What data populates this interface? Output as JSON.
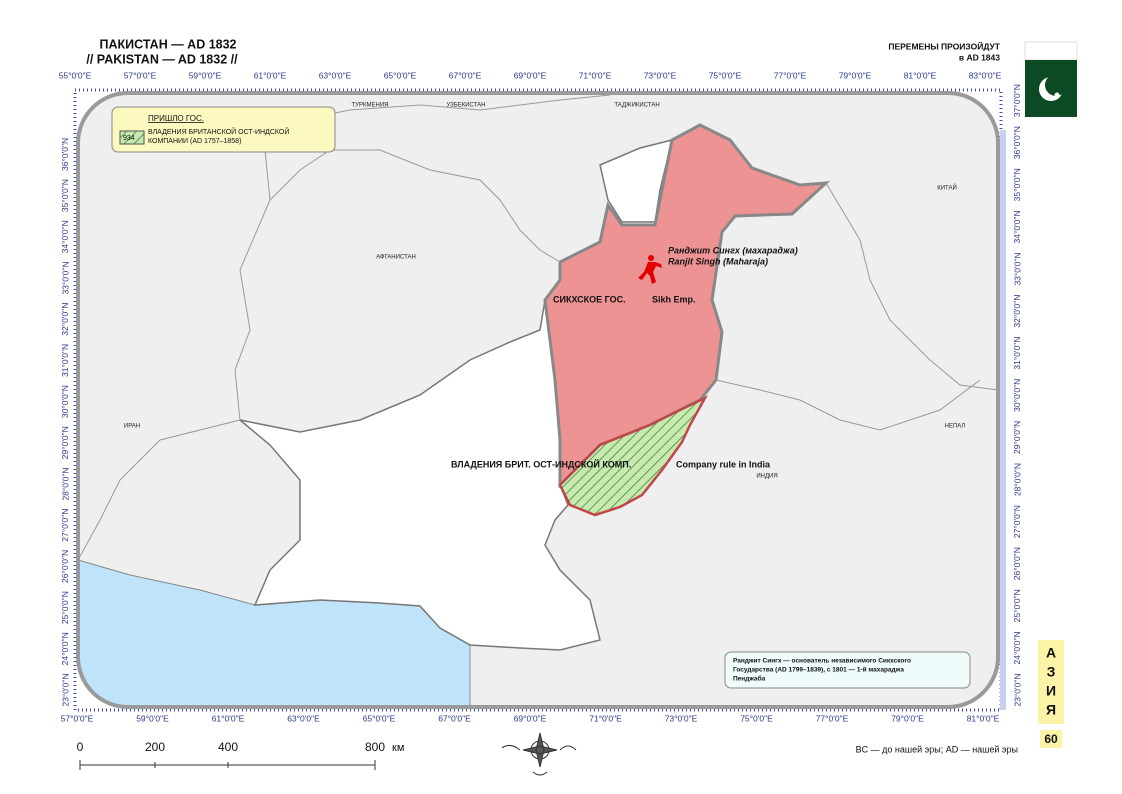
{
  "header": {
    "title_ru": "ПАКИСТАН — AD 1832",
    "title_en": "// PAKISTAN — AD 1832 //",
    "change_line1": "ПЕРЕМЕНЫ ПРОИЗОЙДУТ",
    "change_line2": "в AD 1843"
  },
  "longitudes_top": [
    "55°0'0\"E",
    "57°0'0\"E",
    "59°0'0\"E",
    "61°0'0\"E",
    "63°0'0\"E",
    "65°0'0\"E",
    "67°0'0\"E",
    "69°0'0\"E",
    "71°0'0\"E",
    "73°0'0\"E",
    "75°0'0\"E",
    "77°0'0\"E",
    "79°0'0\"E",
    "81°0'0\"E",
    "83°0'0\"E"
  ],
  "longitudes_bottom": [
    "57°0'0\"E",
    "59°0'0\"E",
    "61°0'0\"E",
    "63°0'0\"E",
    "65°0'0\"E",
    "67°0'0\"E",
    "69°0'0\"E",
    "71°0'0\"E",
    "73°0'0\"E",
    "75°0'0\"E",
    "77°0'0\"E",
    "79°0'0\"E",
    "81°0'0\"E"
  ],
  "latitudes_left": [
    "23°0'0\"N",
    "24°0'0\"N",
    "25°0'0\"N",
    "26°0'0\"N",
    "27°0'0\"N",
    "28°0'0\"N",
    "29°0'0\"N",
    "30°0'0\"N",
    "31°0'0\"N",
    "32°0'0\"N",
    "33°0'0\"N",
    "34°0'0\"N",
    "35°0'0\"N",
    "36°0'0\"N"
  ],
  "latitudes_right": [
    "23°0'0\"N",
    "24°0'0\"N",
    "25°0'0\"N",
    "26°0'0\"N",
    "27°0'0\"N",
    "28°0'0\"N",
    "29°0'0\"N",
    "30°0'0\"N",
    "31°0'0\"N",
    "32°0'0\"N",
    "33°0'0\"N",
    "34°0'0\"N",
    "35°0'0\"N",
    "36°0'0\"N",
    "37°0'0\"N"
  ],
  "legend": {
    "title": "ПРИШЛО ГОС.",
    "swatch": "934",
    "line1": "ВЛАДЕНИЯ БРИТАНСКОЙ ОСТ-ИНДСКОЙ",
    "line2": "КОМПАНИИ (AD 1757–1858)"
  },
  "countries": {
    "turkmenia": "ТУРКМЕНИЯ",
    "uzbekistan": "УЗБЕКИСТАН",
    "tajikistan": "ТАДЖИКИСТАН",
    "china": "КИТАЙ",
    "afghanistan": "АФГАНИСТАН",
    "iran": "ИРАН",
    "nepal": "НЕПАЛ",
    "india": "ИНДИЯ"
  },
  "ranjit": {
    "ru": "Ранджит Сингх (махараджа)",
    "en": "Ranjit Singh (Maharaja)"
  },
  "sikh": {
    "ru": "СИКХСКОЕ ГОС.",
    "en": "Sikh Emp."
  },
  "company": {
    "ru": "ВЛАДЕНИЯ БРИТ. ОСТ-ИНДСКОЙ КОМП.",
    "en": "Company rule in India"
  },
  "note": {
    "line1": "Ранджит Сингх — основатель независимого Сикхского",
    "line2": "Государства (AD 1799–1839), с 1801 — 1-й махараджа",
    "line3": "Пенджаба"
  },
  "scale": {
    "labels": [
      "0",
      "200",
      "400",
      "800"
    ],
    "unit": "км"
  },
  "side_tab": {
    "letters": [
      "А",
      "З",
      "И",
      "Я"
    ],
    "page": "60"
  },
  "footer": "BC — до нашей эры; AD — нашей эры"
}
